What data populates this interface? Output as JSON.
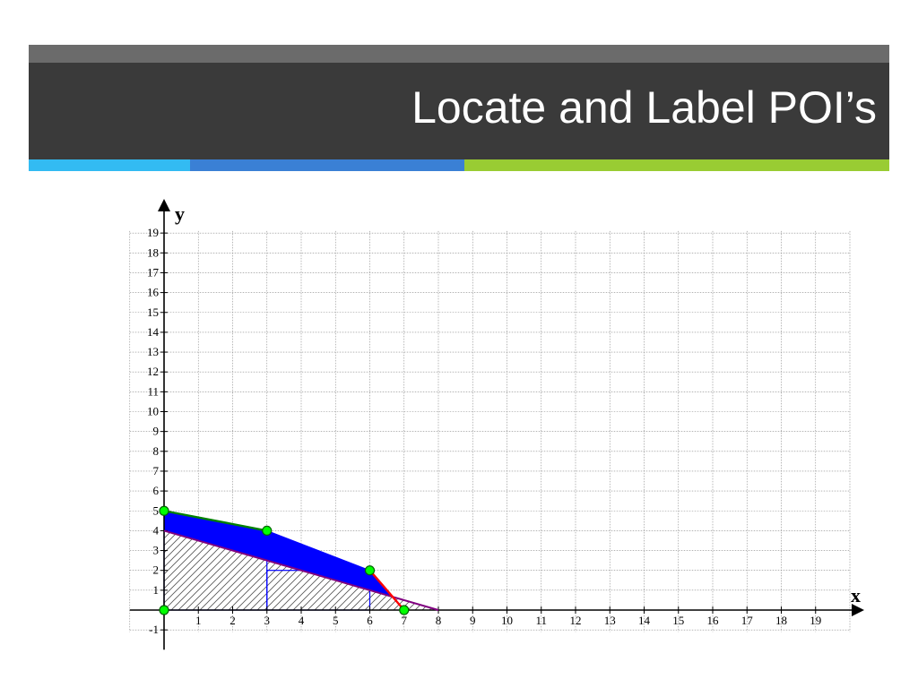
{
  "slide": {
    "title": "Locate and Label POI’s"
  },
  "colors": {
    "title_bar": "#3a3a3a",
    "title_bar_top": "#6b6b6b",
    "accent_1": "#33bbf2",
    "accent_2": "#3a80d5",
    "accent_3": "#99cc33",
    "feasible_fill": "#0000ff",
    "hatch": "#555555",
    "constraint_green": "#008000",
    "constraint_red": "#ff0000",
    "objective_purple": "#800080",
    "point_fill": "#00ff00"
  },
  "graph": {
    "x_axis_label": "x",
    "y_axis_label": "y",
    "x_ticks": [
      1,
      2,
      3,
      4,
      5,
      6,
      7,
      8,
      9,
      10,
      11,
      12,
      13,
      14,
      15,
      16,
      17,
      18,
      19
    ],
    "y_ticks": [
      19,
      18,
      17,
      16,
      15,
      14,
      13,
      12,
      11,
      10,
      9,
      8,
      7,
      6,
      5,
      4,
      3,
      2,
      1,
      -1
    ],
    "x_range": [
      -1,
      20
    ],
    "y_range": [
      -2,
      20
    ],
    "feasible_region": [
      [
        0,
        0
      ],
      [
        0,
        5
      ],
      [
        3,
        4
      ],
      [
        6,
        2
      ],
      [
        7,
        0
      ]
    ],
    "hatched_region": [
      [
        0,
        0
      ],
      [
        0,
        4
      ],
      [
        8,
        0
      ]
    ],
    "inner_rectangles": [
      {
        "x": [
          0,
          3
        ],
        "y": [
          0,
          4
        ]
      },
      {
        "x": [
          3,
          6
        ],
        "y": [
          0,
          2
        ]
      }
    ],
    "green_line": [
      [
        0,
        5
      ],
      [
        3,
        4
      ]
    ],
    "red_line": [
      [
        6,
        2
      ],
      [
        7,
        0
      ]
    ],
    "purple_line": [
      [
        0,
        4
      ],
      [
        8,
        0
      ]
    ],
    "points": [
      [
        0,
        5
      ],
      [
        3,
        4
      ],
      [
        6,
        2
      ],
      [
        7,
        0
      ],
      [
        0,
        0
      ]
    ]
  }
}
